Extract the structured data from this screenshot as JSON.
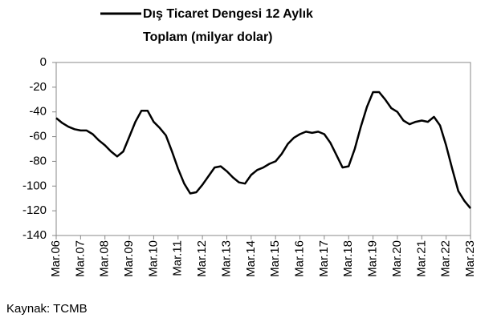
{
  "chart_data": {
    "type": "line",
    "series": [
      {
        "name": "Dış Ticaret Dengesi 12 Aylık Toplam (milyar dolar)",
        "color": "#000000",
        "values": [
          -45,
          -49,
          -52,
          -54,
          -55,
          -55,
          -58,
          -63,
          -67,
          -72,
          -76,
          -72,
          -60,
          -48,
          -39,
          -39,
          -48,
          -53,
          -59,
          -72,
          -86,
          -98,
          -106,
          -105,
          -99,
          -92,
          -85,
          -84,
          -88,
          -93,
          -97,
          -98,
          -91,
          -87,
          -85,
          -82,
          -80,
          -74,
          -66,
          -61,
          -58,
          -56,
          -57,
          -56,
          -58,
          -65,
          -75,
          -85,
          -84,
          -70,
          -52,
          -36,
          -24,
          -24,
          -30,
          -37,
          -40,
          -47,
          -50,
          -48,
          -47,
          -48,
          -44,
          -51,
          -67,
          -86,
          -104,
          -112,
          -118
        ]
      }
    ],
    "x": [
      "2006-03",
      "2006-06",
      "2006-09",
      "2006-12",
      "2007-03",
      "2007-06",
      "2007-09",
      "2007-12",
      "2008-03",
      "2008-06",
      "2008-09",
      "2008-12",
      "2009-03",
      "2009-06",
      "2009-09",
      "2009-12",
      "2010-03",
      "2010-06",
      "2010-09",
      "2010-12",
      "2011-03",
      "2011-06",
      "2011-09",
      "2011-12",
      "2012-03",
      "2012-06",
      "2012-09",
      "2012-12",
      "2013-03",
      "2013-06",
      "2013-09",
      "2013-12",
      "2014-03",
      "2014-06",
      "2014-09",
      "2014-12",
      "2015-03",
      "2015-06",
      "2015-09",
      "2015-12",
      "2016-03",
      "2016-06",
      "2016-09",
      "2016-12",
      "2017-03",
      "2017-06",
      "2017-09",
      "2017-12",
      "2018-03",
      "2018-06",
      "2018-09",
      "2018-12",
      "2019-03",
      "2019-06",
      "2019-09",
      "2019-12",
      "2020-03",
      "2020-06",
      "2020-09",
      "2020-12",
      "2021-03",
      "2021-06",
      "2021-09",
      "2021-12",
      "2022-03",
      "2022-06",
      "2022-09",
      "2022-12",
      "2023-03"
    ],
    "xlim": [
      "2006-03",
      "2023-03"
    ],
    "xticks": [
      {
        "value": "2006-03",
        "label": "Mar.06"
      },
      {
        "value": "2007-03",
        "label": "Mar.07"
      },
      {
        "value": "2008-03",
        "label": "Mar.08"
      },
      {
        "value": "2009-03",
        "label": "Mar.09"
      },
      {
        "value": "2010-03",
        "label": "Mar.10"
      },
      {
        "value": "2011-03",
        "label": "Mar.11"
      },
      {
        "value": "2012-03",
        "label": "Mar.12"
      },
      {
        "value": "2013-03",
        "label": "Mar.13"
      },
      {
        "value": "2014-03",
        "label": "Mar.14"
      },
      {
        "value": "2015-03",
        "label": "Mar.15"
      },
      {
        "value": "2016-03",
        "label": "Mar.16"
      },
      {
        "value": "2017-03",
        "label": "Mar.17"
      },
      {
        "value": "2018-03",
        "label": "Mar.18"
      },
      {
        "value": "2019-03",
        "label": "Mar.19"
      },
      {
        "value": "2020-03",
        "label": "Mar.20"
      },
      {
        "value": "2021-03",
        "label": "Mar.21"
      },
      {
        "value": "2022-03",
        "label": "Mar.22"
      },
      {
        "value": "2023-03",
        "label": "Mar.23"
      }
    ],
    "ylim": [
      -140,
      0
    ],
    "yticks": [
      0,
      -20,
      -40,
      -60,
      -80,
      -100,
      -120,
      -140
    ],
    "source": "Kaynak: TCMB"
  }
}
